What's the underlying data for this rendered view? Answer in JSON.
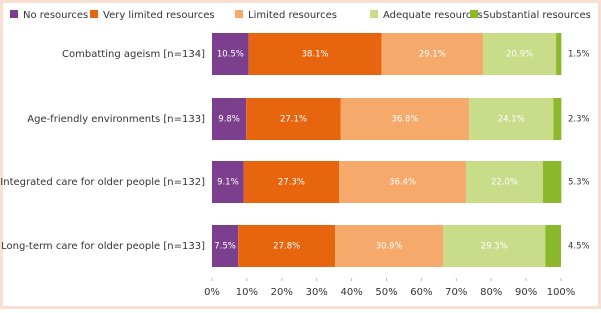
{
  "chart_data": {
    "type": "stacked_bar_horizontal",
    "categories": [
      "Combatting ageism [n=134]",
      "Age-friendly environments [n=133]",
      "Integrated care for older people [n=132]",
      "Long-term care for older people [n=133]"
    ],
    "series": [
      {
        "name": "No resources",
        "color": "#7b3f8e",
        "values": [
          10.5,
          9.8,
          9.1,
          7.5
        ],
        "value_labels": [
          "10.5%",
          "9.8%",
          "9.1%",
          "7.5%"
        ]
      },
      {
        "name": "Very limited resources",
        "color": "#e8650f",
        "values": [
          38.1,
          27.1,
          27.3,
          27.8
        ],
        "value_labels": [
          "38.1%",
          "27.1%",
          "27.3%",
          "27.8%"
        ]
      },
      {
        "name": "Limited resources",
        "color": "#f5a96b",
        "values": [
          29.1,
          36.8,
          36.4,
          30.9
        ],
        "value_labels": [
          "29.1%",
          "36.8%",
          "36.4%",
          "30.9%"
        ]
      },
      {
        "name": "Adequate resources",
        "color": "#c8dc8a",
        "values": [
          20.9,
          24.1,
          22.0,
          29.3
        ],
        "value_labels": [
          "20.9%",
          "24.1%",
          "22.0%",
          "29.3%"
        ]
      },
      {
        "name": "Substantial resources",
        "color": "#8cb82b",
        "values": [
          1.5,
          2.3,
          5.3,
          4.5
        ],
        "value_labels": [
          "1.5%",
          "2.3%",
          "5.3%",
          "4.5%"
        ]
      }
    ],
    "xlim": [
      0,
      100
    ],
    "xticks": [
      {
        "value": 0,
        "label": "0%"
      },
      {
        "value": 10,
        "label": "10%"
      },
      {
        "value": 20,
        "label": "20%"
      },
      {
        "value": 30,
        "label": "30%"
      },
      {
        "value": 40,
        "label": "40%"
      },
      {
        "value": 50,
        "label": "50%"
      },
      {
        "value": 60,
        "label": "60%"
      },
      {
        "value": 70,
        "label": "70%"
      },
      {
        "value": 80,
        "label": "80%"
      },
      {
        "value": 90,
        "label": "90%"
      },
      {
        "value": 100,
        "label": "100%"
      }
    ],
    "legend": "top"
  }
}
